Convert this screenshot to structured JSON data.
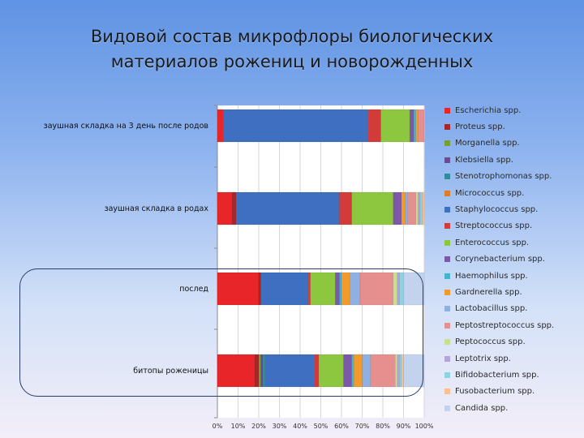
{
  "slide": {
    "title_line1": "Видовой состав микрофлоры биологических",
    "title_line2": "материалов рожениц и новорожденных"
  },
  "chart_data": {
    "type": "bar",
    "orientation": "horizontal",
    "stacked": "100%",
    "categories": [
      "заушная складка на 3 день после родов",
      "заушная складка в родах",
      "послед",
      "битопы роженицы"
    ],
    "xlim": [
      0,
      100
    ],
    "xticks": [
      "0%",
      "10%",
      "20%",
      "30%",
      "40%",
      "50%",
      "60%",
      "70%",
      "80%",
      "90%",
      "100%"
    ],
    "grid": true,
    "legend_position": "right",
    "series": [
      {
        "name": "Escherichia spp.",
        "color": "#e8262a",
        "values": [
          3,
          7,
          20,
          18
        ]
      },
      {
        "name": "Proteus spp.",
        "color": "#a8262a",
        "values": [
          0,
          2,
          1,
          2
        ]
      },
      {
        "name": "Morganella spp.",
        "color": "#77a030",
        "values": [
          0,
          0,
          0,
          1
        ]
      },
      {
        "name": "Klebsiella spp.",
        "color": "#6b4a96",
        "values": [
          0,
          0,
          0,
          1
        ]
      },
      {
        "name": "Stenotrophomonas spp.",
        "color": "#2f8c9c",
        "values": [
          0,
          0,
          0,
          1
        ]
      },
      {
        "name": "Micrococcus spp.",
        "color": "#e07c26",
        "values": [
          0,
          0,
          0,
          0
        ]
      },
      {
        "name": "Staphylococcus spp.",
        "color": "#3e6fc1",
        "values": [
          70,
          50,
          23,
          24
        ]
      },
      {
        "name": "Streptococcus spp.",
        "color": "#d33a3a",
        "values": [
          6,
          6,
          1,
          2
        ]
      },
      {
        "name": "Enterococcus spp.",
        "color": "#8dc63f",
        "values": [
          14,
          20,
          12,
          12
        ]
      },
      {
        "name": "Corynebacterium spp.",
        "color": "#7c59a8",
        "values": [
          2,
          4,
          2,
          4
        ]
      },
      {
        "name": "Haemophilus spp.",
        "color": "#44b4cf",
        "values": [
          1,
          0,
          1,
          1
        ]
      },
      {
        "name": "Gardnerella spp.",
        "color": "#f39a2b",
        "values": [
          1,
          2,
          4,
          4
        ]
      },
      {
        "name": "Lactobacillus spp.",
        "color": "#8fb0e0",
        "values": [
          0,
          1,
          5,
          4
        ]
      },
      {
        "name": "Peptostreptococcus spp.",
        "color": "#e58f8f",
        "values": [
          3,
          4,
          16,
          12
        ]
      },
      {
        "name": "Peptococcus spp.",
        "color": "#c6e08f",
        "values": [
          0,
          1,
          2,
          1
        ]
      },
      {
        "name": "Leptotrix spp.",
        "color": "#b7a4d6",
        "values": [
          0,
          1,
          1,
          1
        ]
      },
      {
        "name": "Bifidobacterium spp.",
        "color": "#8ed3e4",
        "values": [
          0,
          1,
          2,
          1
        ]
      },
      {
        "name": "Fusobacterium spp.",
        "color": "#f8c08f",
        "values": [
          0,
          1,
          0,
          1
        ]
      },
      {
        "name": "Candida spp.",
        "color": "#c3d3ee",
        "values": [
          0,
          0,
          10,
          10
        ]
      }
    ]
  }
}
